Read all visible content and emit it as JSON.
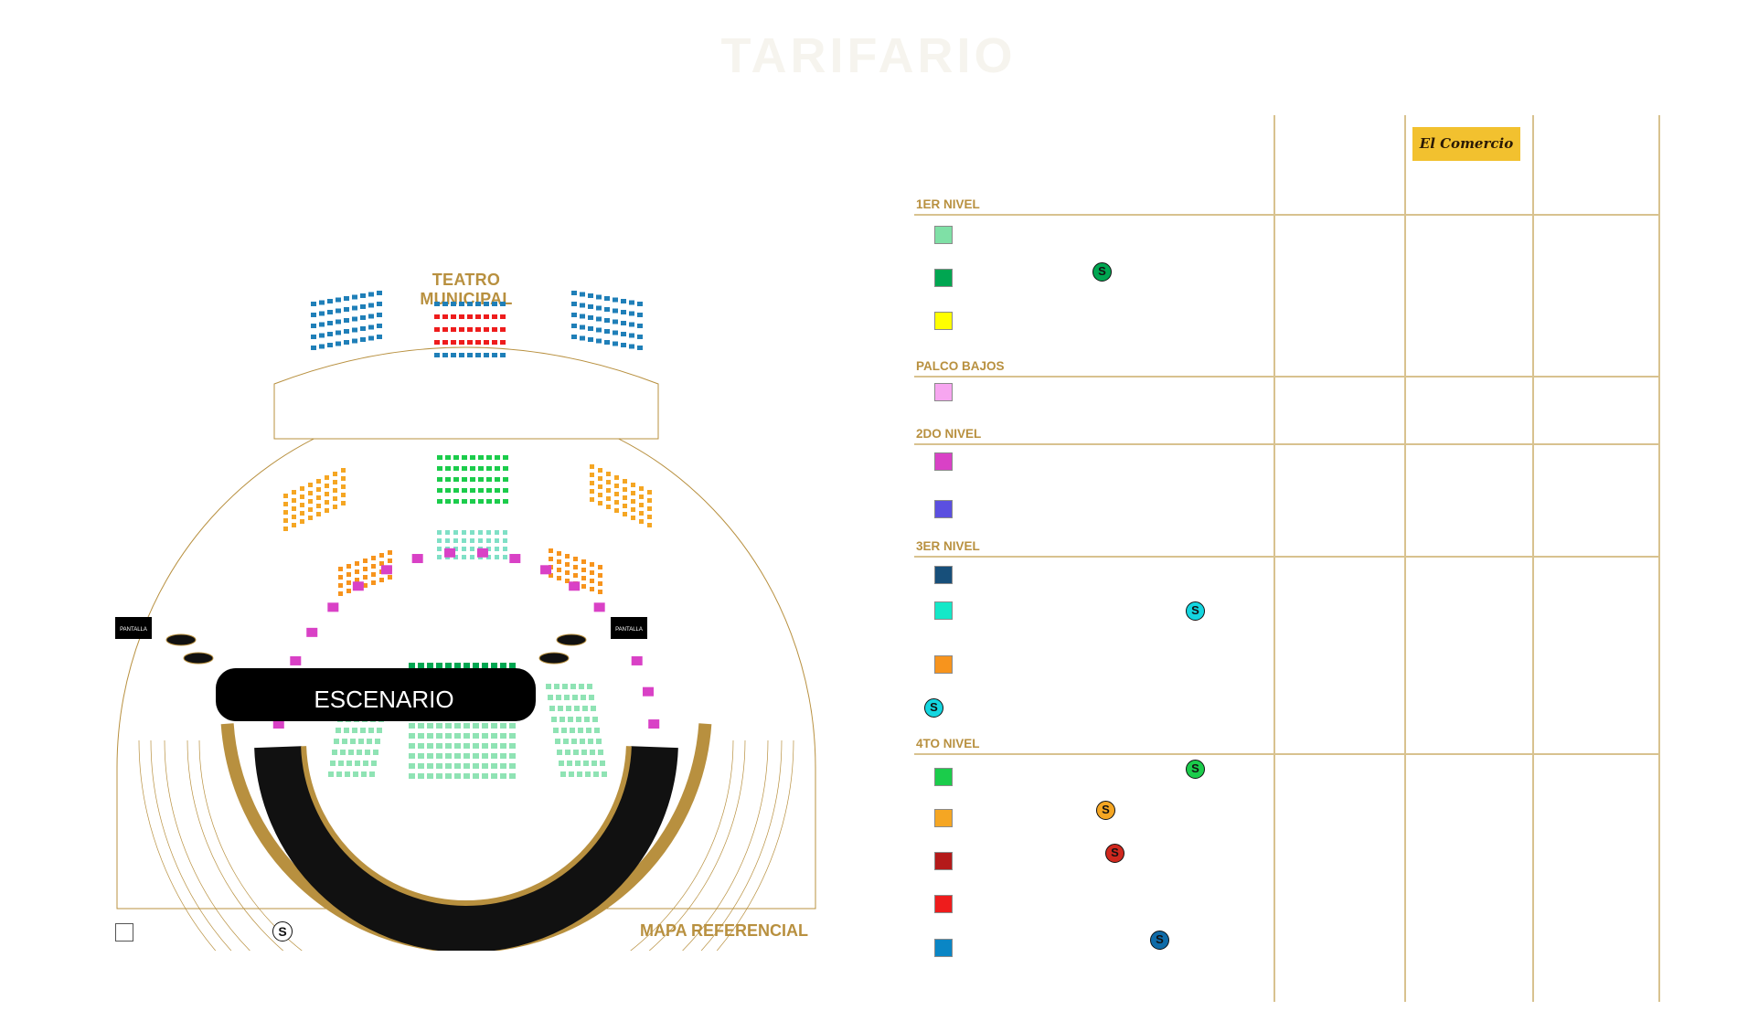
{
  "page": {
    "title": "TARIFARIO"
  },
  "map": {
    "title": "TEATRO MUNICIPAL",
    "stage_label": "ESCENARIO",
    "screen_label": "PANTALLA",
    "caption": "MAPA REFERENCIAL",
    "legend_symbol": "S"
  },
  "price_table": {
    "sponsor_logo_text": "El Comercio",
    "levels": [
      {
        "label": "1ER NIVEL",
        "zones": [
          {
            "color": "#7fe0a6",
            "badge": null
          },
          {
            "color": "#00a651",
            "badge": {
              "text": "S",
              "color": "#00a651"
            }
          },
          {
            "color": "#ffff00",
            "badge": null
          }
        ]
      },
      {
        "label": "PALCO BAJOS",
        "zones": [
          {
            "color": "#f7a6f0",
            "badge": null
          }
        ]
      },
      {
        "label": "2DO NIVEL",
        "zones": [
          {
            "color": "#d941c6",
            "badge": null
          },
          {
            "color": "#5b4fe0",
            "badge": null
          }
        ]
      },
      {
        "label": "3ER NIVEL",
        "zones": [
          {
            "color": "#174f7a",
            "badge": null
          },
          {
            "color": "#14e8c8",
            "badge": {
              "text": "S",
              "color": "#14d6e0"
            }
          },
          {
            "color": "#f7941d",
            "badge": null
          },
          {
            "color": null,
            "badge": {
              "text": "S",
              "color": "#14d6e0"
            }
          }
        ]
      },
      {
        "label": "4TO NIVEL",
        "zones": [
          {
            "color": "#1bcc4b",
            "badge": {
              "text": "S",
              "color": "#1bcc4b"
            }
          },
          {
            "color": "#f5a623",
            "badge": {
              "text": "S",
              "color": "#f5a623"
            }
          },
          {
            "color": "#b41a1a",
            "badge": {
              "text": "S",
              "color": "#d0281e"
            }
          },
          {
            "color": "#ee1c1c",
            "badge": null
          },
          {
            "color": "#0a86c5",
            "badge": {
              "text": "S",
              "color": "#0f6ba8"
            }
          }
        ]
      }
    ]
  },
  "colors": {
    "gold": "#b8903f",
    "stage": "#000000"
  }
}
